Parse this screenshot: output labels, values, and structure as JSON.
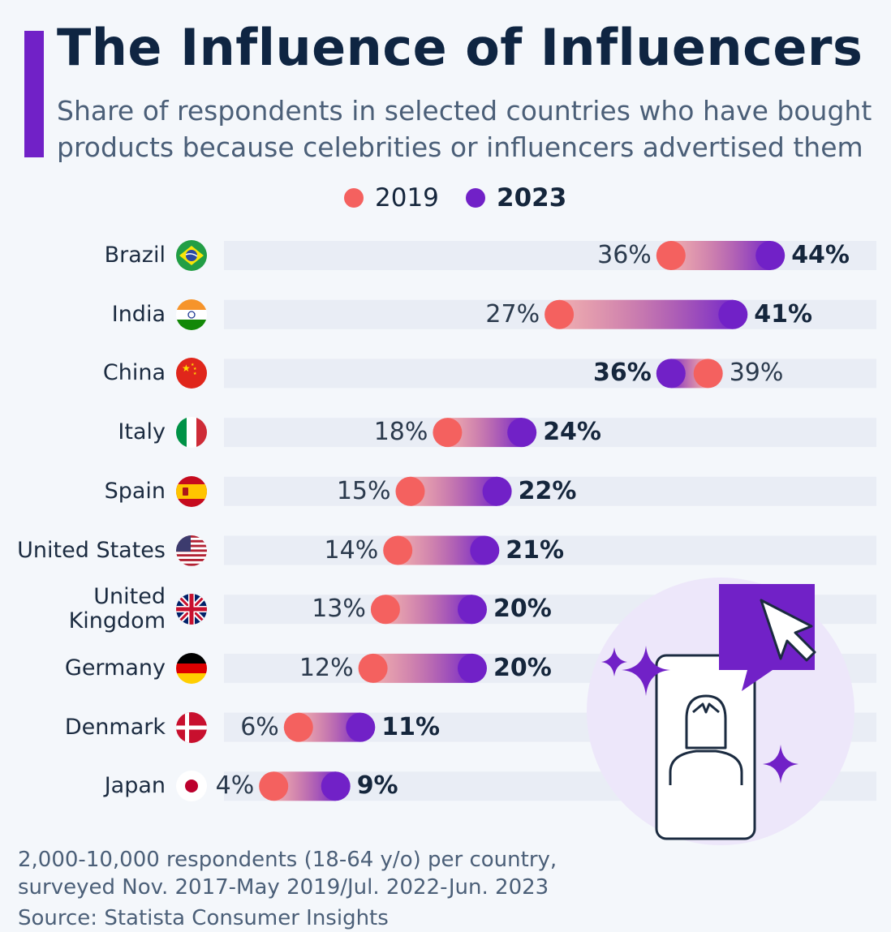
{
  "title": "The Influence of Influencers",
  "subtitle": "Share of respondents in selected countries who have bought products because celebrities or influencers advertised them",
  "legend": [
    {
      "label": "2019",
      "color": "#f4615f"
    },
    {
      "label": "2023",
      "color": "#7121c7"
    }
  ],
  "note": "2,000-10,000 respondents (18-64 y/o) per country, surveyed Nov. 2017-May 2019/Jul. 2022-Jun. 2023",
  "source": "Source: Statista Consumer Insights",
  "chart_data": {
    "type": "dumbbell",
    "xlim": [
      0,
      50
    ],
    "categories": [
      "Brazil",
      "India",
      "China",
      "Italy",
      "Spain",
      "United States",
      "United Kingdom",
      "Germany",
      "Denmark",
      "Japan"
    ],
    "category_labels": [
      [
        "Brazil"
      ],
      [
        "India"
      ],
      [
        "China"
      ],
      [
        "Italy"
      ],
      [
        "Spain"
      ],
      [
        "United States"
      ],
      [
        "United",
        "Kingdom"
      ],
      [
        "Germany"
      ],
      [
        "Denmark"
      ],
      [
        "Japan"
      ]
    ],
    "flags": [
      "brazil-flag-icon",
      "india-flag-icon",
      "china-flag-icon",
      "italy-flag-icon",
      "spain-flag-icon",
      "us-flag-icon",
      "uk-flag-icon",
      "germany-flag-icon",
      "denmark-flag-icon",
      "japan-flag-icon"
    ],
    "series": [
      {
        "name": "2019",
        "color": "#f4615f",
        "values": [
          36,
          27,
          39,
          18,
          15,
          14,
          13,
          12,
          6,
          4
        ]
      },
      {
        "name": "2023",
        "color": "#7121c7",
        "values": [
          44,
          41,
          36,
          24,
          22,
          21,
          20,
          20,
          11,
          9
        ]
      }
    ],
    "value_labels": {
      "2019": [
        "36%",
        "27%",
        "39%",
        "18%",
        "15%",
        "14%",
        "13%",
        "12%",
        "6%",
        "4%"
      ],
      "2023": [
        "44%",
        "41%",
        "36%",
        "24%",
        "22%",
        "21%",
        "20%",
        "20%",
        "11%",
        "9%"
      ]
    },
    "track_color": "#e9edf5",
    "grid": false
  }
}
